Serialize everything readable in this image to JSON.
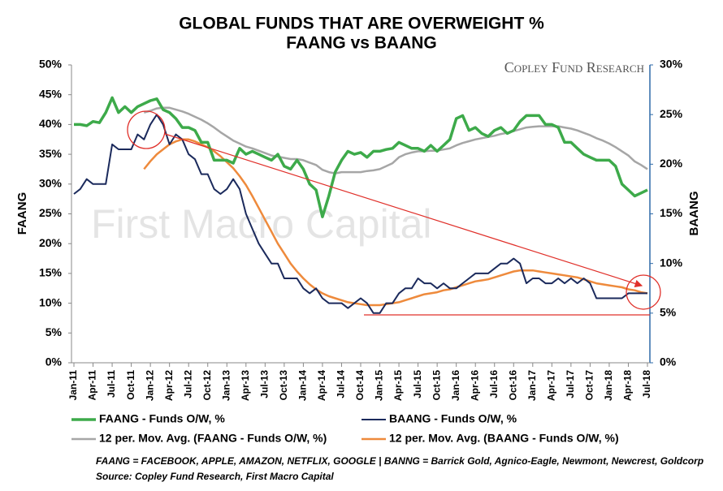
{
  "chart_data": {
    "type": "line",
    "title": "GLOBAL FUNDS THAT ARE OVERWEIGHT %",
    "subtitle": "FAANG vs BAANG",
    "brand": "Copley Fund Research",
    "watermark": "First Macro Capital",
    "y_label": "FAANG",
    "y2_label": "BAANG",
    "footnotes": [
      "FAANG = FACEBOOK, APPLE, AMAZON, NETFLIX, GOOGLE    | BANNG = Barrick Gold, Agnico-Eagle, Newmont, Newcrest, Goldcorp",
      "Source: Copley Fund Research, First Macro Capital"
    ],
    "legend": "bottom",
    "grid": false,
    "categories": [
      "Jan-11",
      null,
      null,
      "Apr-11",
      null,
      null,
      "Jul-11",
      null,
      null,
      "Oct-11",
      null,
      null,
      "Jan-12",
      null,
      null,
      "Apr-12",
      null,
      null,
      "Jul-12",
      null,
      null,
      "Oct-12",
      null,
      null,
      "Jan-13",
      null,
      null,
      "Apr-13",
      null,
      null,
      "Jul-13",
      null,
      null,
      "Oct-13",
      null,
      null,
      "Jan-14",
      null,
      null,
      "Apr-14",
      null,
      null,
      "Jul-14",
      null,
      null,
      "Oct-14",
      null,
      null,
      "Jan-15",
      null,
      null,
      "Apr-15",
      null,
      null,
      "Jul-15",
      null,
      null,
      "Oct-15",
      null,
      null,
      "Jan-16",
      null,
      null,
      "Apr-16",
      null,
      null,
      "Jul-16",
      null,
      null,
      "Oct-16",
      null,
      null,
      "Jan-17",
      null,
      null,
      "Apr-17",
      null,
      null,
      "Jul-17",
      null,
      null,
      "Oct-17",
      null,
      null,
      "Jan-18",
      null,
      null,
      "Apr-18",
      null,
      null,
      "Jul-18"
    ],
    "ylim": [
      0,
      50
    ],
    "yticks": [
      {
        "value": 0,
        "label": "0%"
      },
      {
        "value": 5,
        "label": "5%"
      },
      {
        "value": 10,
        "label": "10%"
      },
      {
        "value": 15,
        "label": "15%"
      },
      {
        "value": 20,
        "label": "20%"
      },
      {
        "value": 25,
        "label": "25%"
      },
      {
        "value": 30,
        "label": "30%"
      },
      {
        "value": 35,
        "label": "35%"
      },
      {
        "value": 40,
        "label": "40%"
      },
      {
        "value": 45,
        "label": "45%"
      },
      {
        "value": 50,
        "label": "50%"
      }
    ],
    "y2lim": [
      0,
      30
    ],
    "y2ticks": [
      {
        "value": 0,
        "label": "0%"
      },
      {
        "value": 5,
        "label": "5%"
      },
      {
        "value": 10,
        "label": "10%"
      },
      {
        "value": 15,
        "label": "15%"
      },
      {
        "value": 20,
        "label": "20%"
      },
      {
        "value": 25,
        "label": "25%"
      },
      {
        "value": 30,
        "label": "30%"
      }
    ],
    "series": [
      {
        "name": "FAANG - Funds O/W, %",
        "color": "#3daa4a",
        "width": 3.5,
        "values": [
          40,
          40,
          39.8,
          40.5,
          40.3,
          42,
          44.5,
          42,
          43,
          42,
          43,
          43.5,
          44,
          44.3,
          42.5,
          42,
          41,
          39.5,
          39.5,
          39,
          37,
          37,
          34,
          34,
          34,
          33.5,
          36,
          35,
          35.5,
          35,
          34.5,
          34,
          35,
          33,
          32.5,
          34,
          32.5,
          30,
          29,
          24.5,
          28,
          32,
          34,
          35.5,
          35,
          35.3,
          34.5,
          35.5,
          35.5,
          35.8,
          36,
          37,
          36.5,
          36,
          36,
          35.5,
          36.5,
          35.5,
          36.5,
          37.5,
          41,
          41.5,
          39,
          39.5,
          38.5,
          38,
          39,
          39.5,
          38.5,
          39,
          40.5,
          41.5,
          41.5,
          41.5,
          40,
          40,
          39.5,
          37,
          37,
          36,
          35,
          34.5,
          34,
          34,
          34,
          33,
          30,
          29,
          28,
          28.5,
          29
        ]
      },
      {
        "name": "BAANG - Funds O/W, %",
        "color": "#1b2a5c",
        "width": 2,
        "axis": "y2",
        "values": [
          17,
          17.5,
          18.5,
          18,
          18,
          18,
          22,
          21.5,
          21.5,
          21.5,
          23,
          22.5,
          24,
          25,
          24,
          22,
          23,
          22.5,
          21,
          20.5,
          19,
          19,
          17.5,
          17,
          17.5,
          18.5,
          17.5,
          15,
          13.5,
          12,
          11,
          10,
          10,
          8.5,
          8.5,
          8.5,
          7.5,
          7,
          7.5,
          6.5,
          6,
          6,
          6,
          5.5,
          6,
          6.5,
          6,
          5,
          5,
          6,
          6,
          7,
          7.5,
          7.5,
          8.5,
          8,
          8,
          7.5,
          8,
          7.5,
          7.5,
          8,
          8.5,
          9,
          9,
          9,
          9.5,
          10,
          10,
          10.5,
          10,
          8,
          8.5,
          8.5,
          8,
          8,
          8.5,
          8,
          8.5,
          8,
          8.5,
          8,
          6.5,
          6.5,
          6.5,
          6.5,
          6.5,
          7,
          7,
          7,
          7
        ]
      },
      {
        "name": "12 per. Mov. Avg. (FAANG - Funds O/W, %)",
        "color": "#a6a6a6",
        "width": 2.5,
        "values": [
          null,
          null,
          null,
          null,
          null,
          null,
          null,
          null,
          null,
          null,
          null,
          42,
          42.3,
          42.7,
          42.8,
          42.8,
          42.5,
          42.2,
          41.8,
          41.3,
          40.8,
          40.2,
          39.5,
          38.7,
          38,
          37.3,
          36.8,
          36.3,
          36,
          35.6,
          35.2,
          34.8,
          34.6,
          34.4,
          34.2,
          34.2,
          34,
          33.6,
          33.2,
          32.4,
          32,
          31.8,
          32,
          32,
          32,
          32,
          32.2,
          32.3,
          32.5,
          33,
          33.5,
          34.5,
          35,
          35.3,
          35.5,
          35.5,
          35.6,
          35.6,
          35.8,
          36,
          36.5,
          36.9,
          37.2,
          37.5,
          37.7,
          37.9,
          38.1,
          38.4,
          38.6,
          38.9,
          39.2,
          39.5,
          39.6,
          39.7,
          39.7,
          39.7,
          39.7,
          39.5,
          39.3,
          39,
          38.6,
          38.2,
          37.7,
          37.3,
          36.8,
          36.2,
          35.5,
          34.8,
          33.8,
          33.2,
          32.5
        ]
      },
      {
        "name": "12 per. Mov. Avg. (BAANG - Funds O/W, %)",
        "color": "#ee8a3c",
        "width": 2.5,
        "axis": "y2",
        "values": [
          null,
          null,
          null,
          null,
          null,
          null,
          null,
          null,
          null,
          null,
          null,
          19.5,
          20.3,
          21,
          21.5,
          22,
          22.3,
          22.5,
          22.5,
          22.3,
          22,
          21.7,
          21.3,
          20.8,
          20.2,
          19.6,
          18.8,
          17.9,
          16.8,
          15.6,
          14.4,
          13.2,
          12,
          11,
          10,
          9.2,
          8.5,
          7.9,
          7.4,
          7,
          6.7,
          6.5,
          6.3,
          6.1,
          6,
          5.9,
          5.8,
          5.8,
          5.8,
          5.9,
          6,
          6.1,
          6.3,
          6.5,
          6.7,
          6.9,
          7,
          7.1,
          7.3,
          7.4,
          7.6,
          7.8,
          8,
          8.2,
          8.3,
          8.4,
          8.6,
          8.8,
          9,
          9.2,
          9.3,
          9.3,
          9.3,
          9.2,
          9.1,
          9,
          8.9,
          8.8,
          8.7,
          8.6,
          8.4,
          8.2,
          8,
          7.9,
          7.8,
          7.7,
          7.6,
          7.4,
          7.3,
          7.1,
          7
        ]
      }
    ]
  }
}
